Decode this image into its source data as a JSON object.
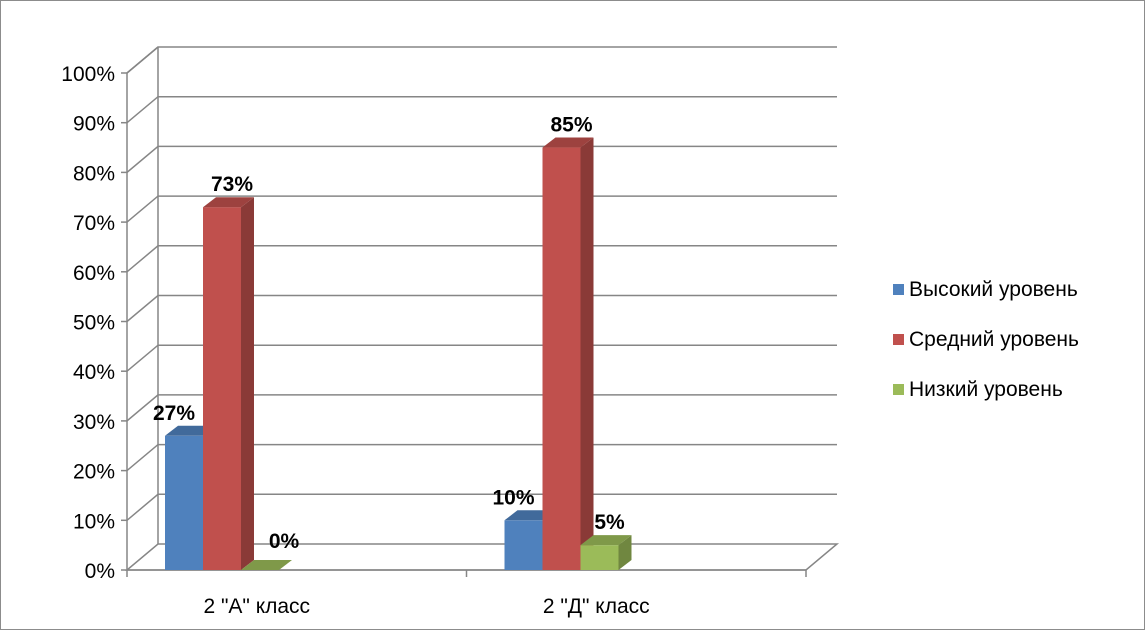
{
  "chart_data": {
    "type": "bar",
    "categories": [
      "2 \"А\" класс",
      "2 \"Д\" класс"
    ],
    "series": [
      {
        "name": "Высокий уровень",
        "values": [
          27,
          10
        ],
        "color": "#4f81bd",
        "labels": [
          "27%",
          "10%"
        ]
      },
      {
        "name": "Средний уровень",
        "values": [
          73,
          85
        ],
        "color": "#c0504d",
        "labels": [
          "73%",
          "85%"
        ]
      },
      {
        "name": "Низкий уровень",
        "values": [
          0,
          5
        ],
        "color": "#9bbb59",
        "labels": [
          "0%",
          "5%"
        ]
      }
    ],
    "y_ticks": [
      "0%",
      "10%",
      "20%",
      "30%",
      "40%",
      "50%",
      "60%",
      "70%",
      "80%",
      "90%",
      "100%"
    ],
    "ylim": [
      0,
      100
    ],
    "grid": true,
    "legend_position": "right",
    "style": "3d-clustered-column"
  }
}
